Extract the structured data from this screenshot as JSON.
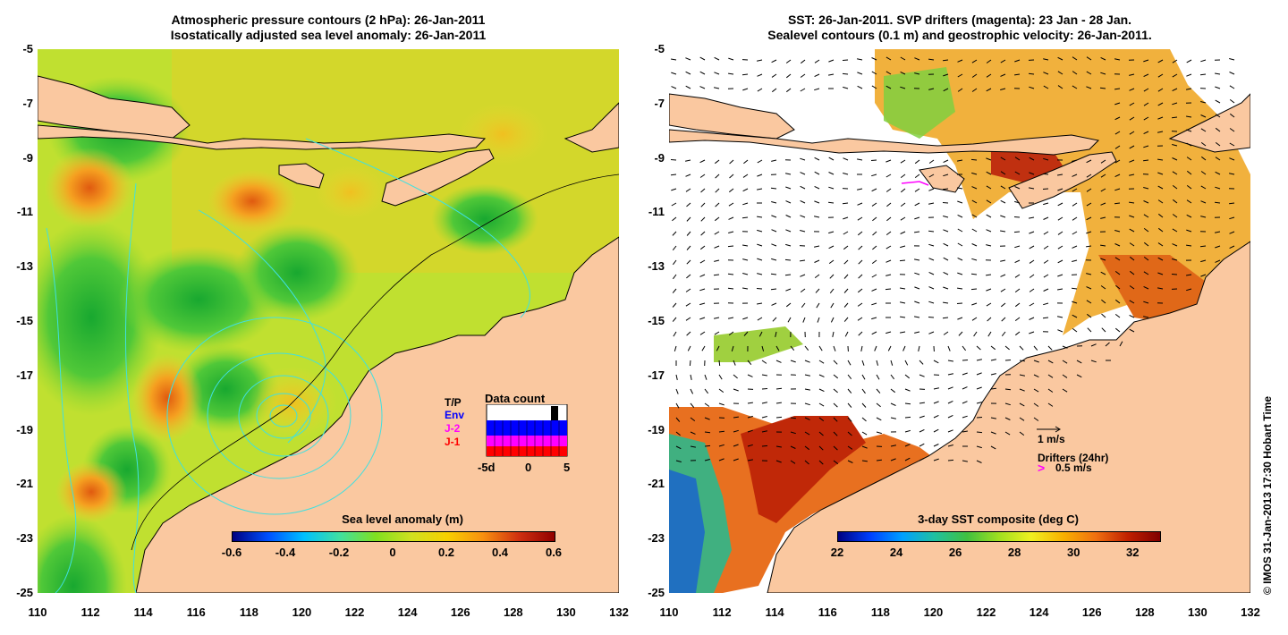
{
  "left_panel": {
    "title_line1": "Atmospheric pressure contours (2 hPa): 26-Jan-2011",
    "title_line2": "Isostatically adjusted sea level anomaly: 26-Jan-2011",
    "colorbar": {
      "title": "Sea level anomaly (m)",
      "ticks": [
        "-0.6",
        "-0.4",
        "-0.2",
        "0",
        "0.2",
        "0.4",
        "0.6"
      ]
    },
    "data_count": {
      "title": "Data count",
      "sources": [
        "T/P",
        "Env",
        "J-2",
        "J-1"
      ],
      "source_colors": [
        "#000000",
        "#0000ff",
        "#ff00ff",
        "#ff0000"
      ],
      "x_ticks": [
        "-5d",
        "0",
        "5"
      ]
    }
  },
  "right_panel": {
    "title_line1": "SST: 26-Jan-2011. SVP drifters (magenta): 23 Jan - 28 Jan.",
    "title_line2": "Sealevel contours (0.1 m) and geostrophic velocity: 26-Jan-2011.",
    "colorbar": {
      "title": "3-day SST composite (deg C)",
      "ticks": [
        "22",
        "24",
        "26",
        "28",
        "30",
        "32"
      ]
    },
    "velocity_legend": "1 m/s",
    "drifters_label": "Drifters (24hr)",
    "drifters_speed": "0.5 m/s",
    "drifter_color": "#ff00ff"
  },
  "axes": {
    "x_ticks": [
      "110",
      "112",
      "114",
      "116",
      "118",
      "120",
      "122",
      "124",
      "126",
      "128",
      "130",
      "132"
    ],
    "y_ticks": [
      "-5",
      "-7",
      "-9",
      "-11",
      "-13",
      "-15",
      "-17",
      "-19",
      "-21",
      "-23",
      "-25"
    ],
    "lon_range": [
      110,
      132
    ],
    "lat_range": [
      -25,
      -5
    ]
  },
  "credit": "© IMOS 31-Jan-2013 17:30 Hobart Time",
  "colors": {
    "land": "#fac8a0",
    "contour_cyan": "#40e0e0",
    "sla_background": "#c8e828"
  }
}
